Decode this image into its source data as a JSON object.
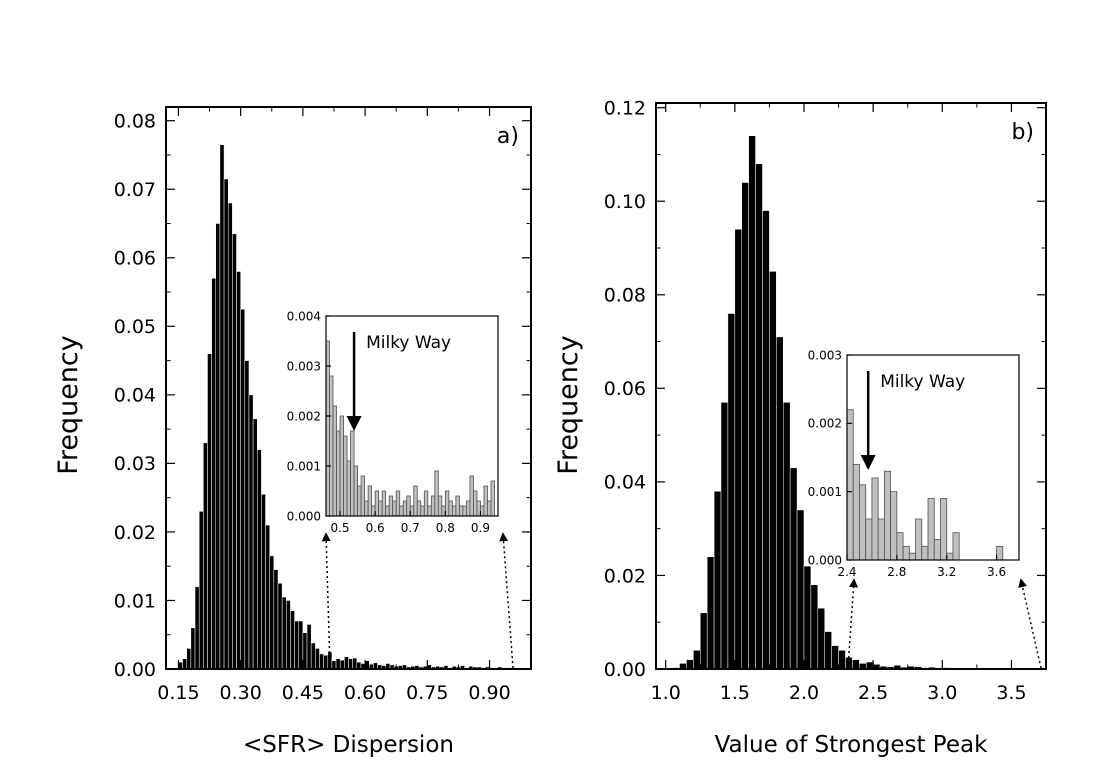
{
  "chart_data": [
    {
      "type": "bar",
      "panel_label": "a)",
      "xlabel": "<SFR> Dispersion",
      "ylabel": "Frequency",
      "xlim": [
        0.12,
        1.0
      ],
      "ylim": [
        0,
        0.082
      ],
      "xticks": [
        0.15,
        0.3,
        0.45,
        0.6,
        0.75,
        0.9
      ],
      "xtick_labels": [
        "0.15",
        "0.30",
        "0.45",
        "0.60",
        "0.75",
        "0.90"
      ],
      "yticks": [
        0,
        0.01,
        0.02,
        0.03,
        0.04,
        0.05,
        0.06,
        0.07,
        0.08
      ],
      "ytick_labels": [
        "0.00",
        "0.01",
        "0.02",
        "0.03",
        "0.04",
        "0.05",
        "0.06",
        "0.07",
        "0.08"
      ],
      "bin_start": 0.15,
      "bin_width": 0.01,
      "values": [
        0.001,
        0.0015,
        0.003,
        0.006,
        0.012,
        0.023,
        0.033,
        0.046,
        0.057,
        0.065,
        0.0765,
        0.0715,
        0.068,
        0.0635,
        0.058,
        0.0525,
        0.045,
        0.04,
        0.0365,
        0.032,
        0.0255,
        0.021,
        0.0165,
        0.0145,
        0.0125,
        0.0105,
        0.01,
        0.0085,
        0.007,
        0.007,
        0.0053,
        0.0065,
        0.0038,
        0.003,
        0.0022,
        0.002,
        0.0025,
        0.0012,
        0.0015,
        0.0013,
        0.0018,
        0.0015,
        0.0016,
        0.001,
        0.0008,
        0.0012,
        0.0007,
        0.0009,
        0.0006,
        0.0005,
        0.0008,
        0.0006,
        0.0004,
        0.0005,
        0.0006,
        0.0003,
        0.0004,
        0.0005,
        0.0003,
        0.0004,
        0.0006,
        0.0003,
        0.0004,
        0.0003,
        0.0005,
        0.0002,
        0.0004,
        0.0003,
        0.0005,
        0.0002,
        0.0004,
        0.0003,
        0.0003,
        0.0002,
        0.0003,
        0.0002,
        0.0002,
        0.0003,
        0.0002,
        0.0002
      ],
      "inset": {
        "type": "bar",
        "xlim": [
          0.46,
          0.95
        ],
        "ylim": [
          0,
          0.004
        ],
        "xticks": [
          0.5,
          0.6,
          0.7,
          0.8,
          0.9
        ],
        "xtick_labels": [
          "0.5",
          "0.6",
          "0.7",
          "0.8",
          "0.9"
        ],
        "yticks": [
          0,
          0.001,
          0.002,
          0.003,
          0.004
        ],
        "ytick_labels": [
          "0.000",
          "0.001",
          "0.002",
          "0.003",
          "0.004"
        ],
        "bin_start": 0.46,
        "bin_width": 0.01,
        "values": [
          0.0035,
          0.0028,
          0.0022,
          0.0017,
          0.002,
          0.0016,
          0.0011,
          0.0017,
          0.001,
          0.0006,
          0.0008,
          0.0003,
          0.0006,
          0.0002,
          0.0005,
          0.0003,
          0.0005,
          0.0002,
          0.0004,
          0.0003,
          0.0005,
          0.0002,
          0.0003,
          0.0004,
          0.0002,
          0.0006,
          0.0003,
          0.0002,
          0.0005,
          0.0002,
          0.0004,
          0.0009,
          0.0004,
          0.0002,
          0.0005,
          0.0003,
          0.0002,
          0.0004,
          0.0002,
          0.0002,
          0.0003,
          0.0008,
          0.0005,
          0.0003,
          0.0002,
          0.0006,
          0.0003,
          0.0007
        ],
        "annotation": "Milky Way",
        "annotation_x": 0.54
      }
    },
    {
      "type": "bar",
      "panel_label": "b)",
      "xlabel": "Value of Strongest Peak",
      "ylabel": "Frequency",
      "xlim": [
        0.93,
        3.75
      ],
      "ylim": [
        0,
        0.121
      ],
      "xticks": [
        1.0,
        1.5,
        2.0,
        2.5,
        3.0,
        3.5
      ],
      "xtick_labels": [
        "1.0",
        "1.5",
        "2.0",
        "2.5",
        "3.0",
        "3.5"
      ],
      "yticks": [
        0,
        0.02,
        0.04,
        0.06,
        0.08,
        0.1,
        0.12
      ],
      "ytick_labels": [
        "0.00",
        "0.02",
        "0.04",
        "0.06",
        "0.08",
        "0.10",
        "0.12"
      ],
      "bin_start": 1.05,
      "bin_width": 0.05,
      "values": [
        0.0003,
        0.0012,
        0.002,
        0.004,
        0.012,
        0.024,
        0.038,
        0.057,
        0.076,
        0.094,
        0.104,
        0.114,
        0.108,
        0.098,
        0.085,
        0.071,
        0.057,
        0.043,
        0.034,
        0.022,
        0.018,
        0.013,
        0.008,
        0.005,
        0.004,
        0.0025,
        0.002,
        0.0012,
        0.0015,
        0.001,
        0.0006,
        0.0005,
        0.0008,
        0.0004,
        0.0006,
        0.0005,
        0.0003,
        0.0004,
        0.0002,
        0.0003,
        0.0002,
        0.0002,
        0.0001,
        0.0001,
        0.0001
      ],
      "inset": {
        "type": "bar",
        "xlim": [
          2.4,
          3.78
        ],
        "ylim": [
          0,
          0.003
        ],
        "xticks": [
          2.4,
          2.8,
          3.2,
          3.6
        ],
        "xtick_labels": [
          "2.4",
          "2.8",
          "3.2",
          "3.6"
        ],
        "yticks": [
          0,
          0.001,
          0.002,
          0.003
        ],
        "ytick_labels": [
          "0.000",
          "0.001",
          "0.002",
          "0.003"
        ],
        "bin_start": 2.4,
        "bin_width": 0.05,
        "values": [
          0.0022,
          0.0014,
          0.0011,
          0.0006,
          0.0012,
          0.0006,
          0.0013,
          0.001,
          0.0004,
          0.0002,
          0.0001,
          0.0006,
          0.0002,
          0.0009,
          0.0003,
          0.0009,
          0.0001,
          0.0004,
          0,
          0,
          0,
          0,
          0,
          0,
          0.0002
        ],
        "annotation": "Milky Way",
        "annotation_x": 2.57
      }
    }
  ]
}
